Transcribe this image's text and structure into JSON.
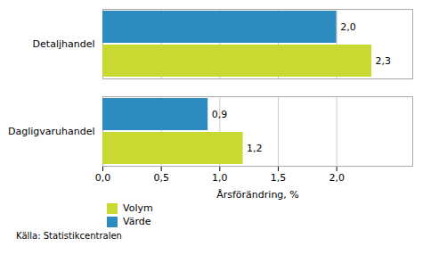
{
  "chart_data": {
    "type": "bar",
    "orientation": "horizontal",
    "categories": [
      "Dagligvaruhandel",
      "Detaljhandel"
    ],
    "series": [
      {
        "name": "Volym",
        "color": "#c8d932",
        "values": [
          1.2,
          2.3
        ],
        "value_labels": [
          "1,2",
          "2,3"
        ]
      },
      {
        "name": "Värde",
        "color": "#2e8bc0",
        "values": [
          0.9,
          2.0
        ],
        "value_labels": [
          "0,9",
          "2,0"
        ]
      }
    ],
    "xlabel": "Årsförändring, %",
    "xlim": [
      0,
      2.65
    ],
    "xticks": [
      {
        "value": 0.0,
        "label": "0,0"
      },
      {
        "value": 0.5,
        "label": "0,5"
      },
      {
        "value": 1.0,
        "label": "1,0"
      },
      {
        "value": 1.5,
        "label": "1,5"
      },
      {
        "value": 2.0,
        "label": "2,0"
      }
    ],
    "grid": true,
    "data_labels": true,
    "legend": "bottom",
    "source": "Källa: Statistikcentralen"
  }
}
